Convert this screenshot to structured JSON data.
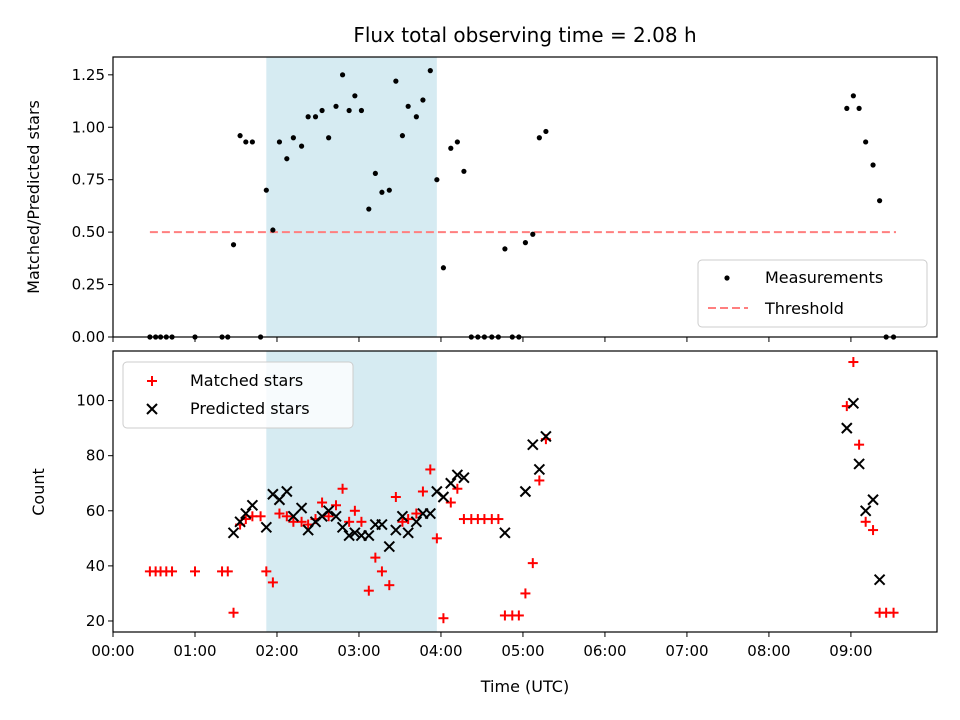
{
  "chart_data": [
    {
      "type": "scatter",
      "title": "Flux total observing time = 2.08 h",
      "ylabel": "Matched/Predicted stars",
      "ylim": [
        0,
        1.335
      ],
      "xlim": [
        0,
        10.05
      ],
      "yticks": [
        0.0,
        0.25,
        0.5,
        0.75,
        1.0,
        1.25
      ],
      "ytick_labels": [
        "0.00",
        "0.25",
        "0.50",
        "0.75",
        "1.00",
        "1.25"
      ],
      "shaded_span_hours": [
        1.87,
        3.95
      ],
      "shade_color": "#add8e6",
      "legend_position": "lower-right",
      "legend": [
        {
          "label": "Measurements",
          "marker": "dot",
          "color": "#000000"
        },
        {
          "label": "Threshold",
          "marker": "dashed-line",
          "color": "#ff7f7f"
        }
      ],
      "threshold": {
        "y": 0.5,
        "x_from": 0.45,
        "x_to": 9.55,
        "color": "#ff7f7f"
      },
      "measurements": [
        [
          0.45,
          0
        ],
        [
          0.52,
          0
        ],
        [
          0.58,
          0
        ],
        [
          0.65,
          0
        ],
        [
          0.72,
          0
        ],
        [
          1.0,
          0
        ],
        [
          1.33,
          0
        ],
        [
          1.4,
          0
        ],
        [
          1.47,
          0.44
        ],
        [
          1.55,
          0.96
        ],
        [
          1.62,
          0.93
        ],
        [
          1.7,
          0.93
        ],
        [
          1.8,
          0
        ],
        [
          1.87,
          0.7
        ],
        [
          1.95,
          0.51
        ],
        [
          2.03,
          0.93
        ],
        [
          2.12,
          0.85
        ],
        [
          2.2,
          0.95
        ],
        [
          2.3,
          0.91
        ],
        [
          2.38,
          1.05
        ],
        [
          2.47,
          1.05
        ],
        [
          2.55,
          1.08
        ],
        [
          2.63,
          0.95
        ],
        [
          2.72,
          1.1
        ],
        [
          2.8,
          1.25
        ],
        [
          2.88,
          1.08
        ],
        [
          2.95,
          1.15
        ],
        [
          3.03,
          1.08
        ],
        [
          3.12,
          0.61
        ],
        [
          3.2,
          0.78
        ],
        [
          3.28,
          0.69
        ],
        [
          3.37,
          0.7
        ],
        [
          3.45,
          1.22
        ],
        [
          3.53,
          0.96
        ],
        [
          3.6,
          1.1
        ],
        [
          3.7,
          1.05
        ],
        [
          3.78,
          1.13
        ],
        [
          3.87,
          1.27
        ],
        [
          3.95,
          0.75
        ],
        [
          4.03,
          0.33
        ],
        [
          4.12,
          0.9
        ],
        [
          4.2,
          0.93
        ],
        [
          4.28,
          0.79
        ],
        [
          4.37,
          0
        ],
        [
          4.45,
          0
        ],
        [
          4.53,
          0
        ],
        [
          4.62,
          0
        ],
        [
          4.7,
          0
        ],
        [
          4.78,
          0.42
        ],
        [
          4.87,
          0
        ],
        [
          4.95,
          0
        ],
        [
          5.03,
          0.45
        ],
        [
          5.12,
          0.49
        ],
        [
          5.2,
          0.95
        ],
        [
          5.28,
          0.98
        ],
        [
          8.95,
          1.09
        ],
        [
          9.03,
          1.15
        ],
        [
          9.1,
          1.09
        ],
        [
          9.18,
          0.93
        ],
        [
          9.27,
          0.82
        ],
        [
          9.35,
          0.65
        ],
        [
          9.43,
          0
        ],
        [
          9.52,
          0
        ]
      ]
    },
    {
      "type": "scatter",
      "xlabel": "Time (UTC)",
      "ylabel": "Count",
      "ylim": [
        16,
        118
      ],
      "xlim": [
        0,
        10.05
      ],
      "yticks": [
        20,
        40,
        60,
        80,
        100
      ],
      "ytick_labels": [
        "20",
        "40",
        "60",
        "80",
        "100"
      ],
      "xticks": [
        0,
        1,
        2,
        3,
        4,
        5,
        6,
        7,
        8,
        9
      ],
      "xtick_labels": [
        "00:00",
        "01:00",
        "02:00",
        "03:00",
        "04:00",
        "05:00",
        "06:00",
        "07:00",
        "08:00",
        "09:00"
      ],
      "shaded_span_hours": [
        1.87,
        3.95
      ],
      "shade_color": "#add8e6",
      "legend_position": "upper-left",
      "series": [
        {
          "name": "Matched stars",
          "marker": "plus",
          "color": "#ff0000",
          "points": [
            [
              0.45,
              38
            ],
            [
              0.52,
              38
            ],
            [
              0.58,
              38
            ],
            [
              0.65,
              38
            ],
            [
              0.72,
              38
            ],
            [
              1.0,
              38
            ],
            [
              1.33,
              38
            ],
            [
              1.4,
              38
            ],
            [
              1.47,
              23
            ],
            [
              1.55,
              55
            ],
            [
              1.62,
              57
            ],
            [
              1.7,
              58
            ],
            [
              1.8,
              58
            ],
            [
              1.87,
              38
            ],
            [
              1.95,
              34
            ],
            [
              2.03,
              59
            ],
            [
              2.12,
              58
            ],
            [
              2.2,
              56
            ],
            [
              2.3,
              56
            ],
            [
              2.38,
              55
            ],
            [
              2.47,
              57
            ],
            [
              2.55,
              63
            ],
            [
              2.63,
              58
            ],
            [
              2.72,
              62
            ],
            [
              2.8,
              68
            ],
            [
              2.88,
              56
            ],
            [
              2.95,
              60
            ],
            [
              3.03,
              56
            ],
            [
              3.12,
              31
            ],
            [
              3.2,
              43
            ],
            [
              3.28,
              38
            ],
            [
              3.37,
              33
            ],
            [
              3.45,
              65
            ],
            [
              3.53,
              56
            ],
            [
              3.6,
              57
            ],
            [
              3.7,
              59
            ],
            [
              3.78,
              67
            ],
            [
              3.87,
              75
            ],
            [
              3.95,
              50
            ],
            [
              4.03,
              21
            ],
            [
              4.12,
              63
            ],
            [
              4.2,
              68
            ],
            [
              4.28,
              57
            ],
            [
              4.37,
              57
            ],
            [
              4.45,
              57
            ],
            [
              4.53,
              57
            ],
            [
              4.62,
              57
            ],
            [
              4.7,
              57
            ],
            [
              4.78,
              22
            ],
            [
              4.87,
              22
            ],
            [
              4.95,
              22
            ],
            [
              5.03,
              30
            ],
            [
              5.12,
              41
            ],
            [
              5.2,
              71
            ],
            [
              5.28,
              86
            ],
            [
              8.95,
              98
            ],
            [
              9.03,
              114
            ],
            [
              9.1,
              84
            ],
            [
              9.18,
              56
            ],
            [
              9.27,
              53
            ],
            [
              9.35,
              23
            ],
            [
              9.43,
              23
            ],
            [
              9.52,
              23
            ]
          ]
        },
        {
          "name": "Predicted stars",
          "marker": "x",
          "color": "#000000",
          "points": [
            [
              1.47,
              52
            ],
            [
              1.55,
              56
            ],
            [
              1.62,
              59
            ],
            [
              1.7,
              62
            ],
            [
              1.87,
              54
            ],
            [
              1.95,
              66
            ],
            [
              2.03,
              64
            ],
            [
              2.12,
              67
            ],
            [
              2.2,
              58
            ],
            [
              2.3,
              61
            ],
            [
              2.38,
              53
            ],
            [
              2.47,
              56
            ],
            [
              2.55,
              58
            ],
            [
              2.63,
              60
            ],
            [
              2.72,
              58
            ],
            [
              2.8,
              54
            ],
            [
              2.88,
              51
            ],
            [
              2.95,
              52
            ],
            [
              3.03,
              51
            ],
            [
              3.12,
              51
            ],
            [
              3.2,
              55
            ],
            [
              3.28,
              55
            ],
            [
              3.37,
              47
            ],
            [
              3.45,
              53
            ],
            [
              3.53,
              58
            ],
            [
              3.6,
              52
            ],
            [
              3.7,
              56
            ],
            [
              3.78,
              59
            ],
            [
              3.87,
              59
            ],
            [
              3.95,
              67
            ],
            [
              4.03,
              65
            ],
            [
              4.12,
              70
            ],
            [
              4.2,
              73
            ],
            [
              4.28,
              72
            ],
            [
              4.78,
              52
            ],
            [
              5.03,
              67
            ],
            [
              5.12,
              84
            ],
            [
              5.2,
              75
            ],
            [
              5.28,
              87
            ],
            [
              8.95,
              90
            ],
            [
              9.03,
              99
            ],
            [
              9.1,
              77
            ],
            [
              9.18,
              60
            ],
            [
              9.27,
              64
            ],
            [
              9.35,
              35
            ]
          ]
        }
      ]
    }
  ]
}
